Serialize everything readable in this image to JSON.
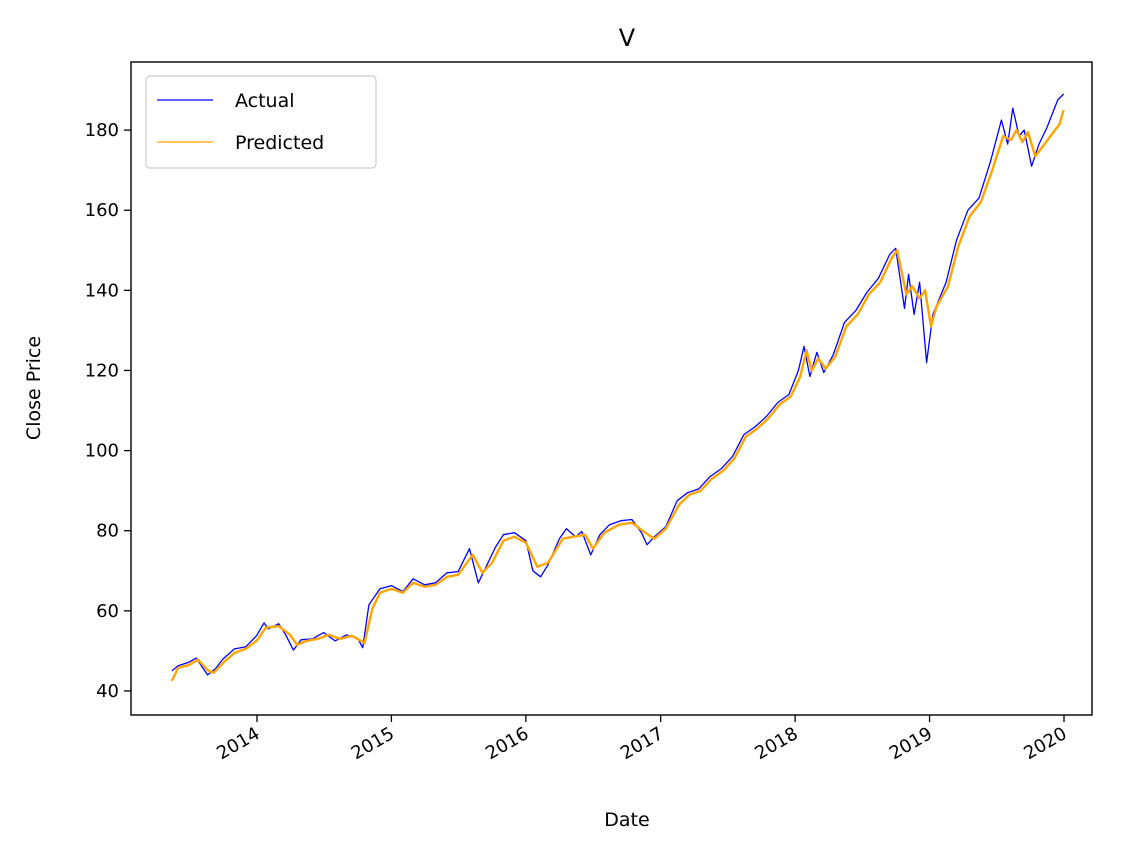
{
  "chart_data": {
    "type": "line",
    "title": "V",
    "xlabel": "Date",
    "ylabel": "Close Price",
    "x_ticks": [
      "2014",
      "2015",
      "2016",
      "2017",
      "2018",
      "2019",
      "2020"
    ],
    "y_ticks": [
      40,
      60,
      80,
      100,
      120,
      140,
      160,
      180
    ],
    "xlim": [
      "2013-01-24",
      "2020-03-17"
    ],
    "ylim": [
      34,
      197
    ],
    "grid": false,
    "legend": "top-left",
    "series": [
      {
        "name": "Actual",
        "color": "#0000ff",
        "points": [
          [
            "2013-05-15",
            45.0
          ],
          [
            "2013-06-01",
            46.3
          ],
          [
            "2013-07-01",
            47.2
          ],
          [
            "2013-07-20",
            48.2
          ],
          [
            "2013-08-20",
            44.0
          ],
          [
            "2013-09-10",
            45.5
          ],
          [
            "2013-10-01",
            48.0
          ],
          [
            "2013-11-01",
            50.5
          ],
          [
            "2013-12-01",
            51.0
          ],
          [
            "2013-12-31",
            53.8
          ],
          [
            "2014-01-20",
            57.0
          ],
          [
            "2014-02-01",
            55.5
          ],
          [
            "2014-03-01",
            56.8
          ],
          [
            "2014-03-20",
            54.0
          ],
          [
            "2014-04-10",
            50.2
          ],
          [
            "2014-05-01",
            52.8
          ],
          [
            "2014-06-01",
            53.0
          ],
          [
            "2014-07-01",
            54.6
          ],
          [
            "2014-08-01",
            52.5
          ],
          [
            "2014-09-01",
            54.0
          ],
          [
            "2014-10-01",
            53.2
          ],
          [
            "2014-10-15",
            50.8
          ],
          [
            "2014-11-01",
            61.5
          ],
          [
            "2014-12-01",
            65.5
          ],
          [
            "2015-01-01",
            66.3
          ],
          [
            "2015-02-01",
            64.8
          ],
          [
            "2015-03-01",
            68.0
          ],
          [
            "2015-04-01",
            66.5
          ],
          [
            "2015-05-01",
            67.0
          ],
          [
            "2015-06-01",
            69.5
          ],
          [
            "2015-07-01",
            69.8
          ],
          [
            "2015-08-01",
            75.5
          ],
          [
            "2015-08-25",
            67.0
          ],
          [
            "2015-09-15",
            71.0
          ],
          [
            "2015-10-10",
            75.8
          ],
          [
            "2015-11-01",
            79.0
          ],
          [
            "2015-12-01",
            79.5
          ],
          [
            "2016-01-01",
            77.5
          ],
          [
            "2016-01-20",
            70.0
          ],
          [
            "2016-02-10",
            68.5
          ],
          [
            "2016-03-01",
            71.5
          ],
          [
            "2016-04-01",
            78.0
          ],
          [
            "2016-04-20",
            80.5
          ],
          [
            "2016-05-15",
            78.5
          ],
          [
            "2016-06-01",
            79.8
          ],
          [
            "2016-06-25",
            74.0
          ],
          [
            "2016-07-20",
            79.0
          ],
          [
            "2016-08-15",
            81.5
          ],
          [
            "2016-09-15",
            82.5
          ],
          [
            "2016-10-15",
            82.8
          ],
          [
            "2016-11-10",
            79.5
          ],
          [
            "2016-11-25",
            76.5
          ],
          [
            "2016-12-15",
            78.5
          ],
          [
            "2017-01-15",
            81.0
          ],
          [
            "2017-02-15",
            87.5
          ],
          [
            "2017-03-15",
            89.5
          ],
          [
            "2017-04-15",
            90.5
          ],
          [
            "2017-05-15",
            93.5
          ],
          [
            "2017-06-15",
            95.5
          ],
          [
            "2017-07-15",
            98.5
          ],
          [
            "2017-08-15",
            104.0
          ],
          [
            "2017-09-15",
            106.0
          ],
          [
            "2017-10-15",
            108.5
          ],
          [
            "2017-11-15",
            112.0
          ],
          [
            "2017-12-15",
            114.0
          ],
          [
            "2018-01-10",
            120.0
          ],
          [
            "2018-01-25",
            126.0
          ],
          [
            "2018-02-10",
            118.5
          ],
          [
            "2018-03-01",
            124.5
          ],
          [
            "2018-03-20",
            119.5
          ],
          [
            "2018-04-15",
            124.0
          ],
          [
            "2018-05-15",
            132.0
          ],
          [
            "2018-06-15",
            135.0
          ],
          [
            "2018-07-15",
            139.5
          ],
          [
            "2018-08-15",
            143.0
          ],
          [
            "2018-09-15",
            149.0
          ],
          [
            "2018-10-01",
            150.5
          ],
          [
            "2018-10-25",
            135.5
          ],
          [
            "2018-11-05",
            144.0
          ],
          [
            "2018-11-20",
            134.0
          ],
          [
            "2018-12-05",
            142.0
          ],
          [
            "2018-12-24",
            122.0
          ],
          [
            "2019-01-10",
            134.0
          ],
          [
            "2019-02-15",
            142.0
          ],
          [
            "2019-03-15",
            152.5
          ],
          [
            "2019-04-15",
            160.0
          ],
          [
            "2019-05-15",
            163.0
          ],
          [
            "2019-06-15",
            172.0
          ],
          [
            "2019-07-15",
            182.5
          ],
          [
            "2019-08-01",
            176.5
          ],
          [
            "2019-08-15",
            185.5
          ],
          [
            "2019-09-01",
            178.5
          ],
          [
            "2019-09-15",
            180.0
          ],
          [
            "2019-10-05",
            171.0
          ],
          [
            "2019-10-25",
            176.5
          ],
          [
            "2019-11-15",
            180.5
          ],
          [
            "2019-12-15",
            187.5
          ],
          [
            "2019-12-31",
            189.0
          ]
        ]
      },
      {
        "name": "Predicted",
        "color": "#ffa500",
        "points": [
          [
            "2013-05-15",
            42.5
          ],
          [
            "2013-06-01",
            45.8
          ],
          [
            "2013-07-01",
            46.5
          ],
          [
            "2013-07-25",
            47.8
          ],
          [
            "2013-08-20",
            45.2
          ],
          [
            "2013-09-05",
            44.5
          ],
          [
            "2013-10-01",
            47.0
          ],
          [
            "2013-11-01",
            49.5
          ],
          [
            "2013-12-01",
            50.5
          ],
          [
            "2013-12-31",
            52.5
          ],
          [
            "2014-01-25",
            55.8
          ],
          [
            "2014-03-01",
            56.2
          ],
          [
            "2014-04-01",
            54.0
          ],
          [
            "2014-04-20",
            51.5
          ],
          [
            "2014-05-15",
            52.5
          ],
          [
            "2014-06-15",
            53.0
          ],
          [
            "2014-07-15",
            54.0
          ],
          [
            "2014-08-15",
            53.0
          ],
          [
            "2014-09-15",
            53.8
          ],
          [
            "2014-10-20",
            52.0
          ],
          [
            "2014-11-10",
            60.5
          ],
          [
            "2014-12-01",
            64.5
          ],
          [
            "2015-01-01",
            65.5
          ],
          [
            "2015-02-01",
            64.5
          ],
          [
            "2015-03-01",
            67.0
          ],
          [
            "2015-04-01",
            66.0
          ],
          [
            "2015-05-01",
            66.5
          ],
          [
            "2015-06-01",
            68.5
          ],
          [
            "2015-07-01",
            69.0
          ],
          [
            "2015-08-10",
            74.0
          ],
          [
            "2015-09-05",
            69.5
          ],
          [
            "2015-10-01",
            72.0
          ],
          [
            "2015-11-01",
            77.5
          ],
          [
            "2015-12-01",
            78.5
          ],
          [
            "2016-01-01",
            77.0
          ],
          [
            "2016-02-01",
            71.0
          ],
          [
            "2016-03-01",
            72.0
          ],
          [
            "2016-04-10",
            78.0
          ],
          [
            "2016-05-10",
            78.5
          ],
          [
            "2016-06-10",
            79.0
          ],
          [
            "2016-07-01",
            75.5
          ],
          [
            "2016-08-01",
            79.5
          ],
          [
            "2016-09-10",
            81.5
          ],
          [
            "2016-10-15",
            82.0
          ],
          [
            "2016-11-20",
            79.5
          ],
          [
            "2016-12-15",
            78.0
          ],
          [
            "2017-01-15",
            80.5
          ],
          [
            "2017-02-20",
            86.5
          ],
          [
            "2017-03-20",
            89.0
          ],
          [
            "2017-04-20",
            90.0
          ],
          [
            "2017-05-20",
            93.0
          ],
          [
            "2017-06-20",
            95.0
          ],
          [
            "2017-07-20",
            98.0
          ],
          [
            "2017-08-20",
            103.5
          ],
          [
            "2017-09-20",
            105.5
          ],
          [
            "2017-10-20",
            108.0
          ],
          [
            "2017-11-20",
            111.5
          ],
          [
            "2017-12-20",
            113.5
          ],
          [
            "2018-01-15",
            118.5
          ],
          [
            "2018-02-01",
            125.0
          ],
          [
            "2018-02-15",
            120.0
          ],
          [
            "2018-03-05",
            123.0
          ],
          [
            "2018-03-25",
            120.5
          ],
          [
            "2018-04-20",
            123.5
          ],
          [
            "2018-05-20",
            131.0
          ],
          [
            "2018-06-20",
            134.0
          ],
          [
            "2018-07-20",
            139.0
          ],
          [
            "2018-08-20",
            142.0
          ],
          [
            "2018-09-20",
            148.0
          ],
          [
            "2018-10-05",
            150.0
          ],
          [
            "2018-10-30",
            139.0
          ],
          [
            "2018-11-15",
            141.0
          ],
          [
            "2018-12-05",
            138.0
          ],
          [
            "2018-12-20",
            140.0
          ],
          [
            "2019-01-05",
            131.0
          ],
          [
            "2019-01-20",
            136.0
          ],
          [
            "2019-02-20",
            141.0
          ],
          [
            "2019-03-20",
            151.0
          ],
          [
            "2019-04-20",
            158.5
          ],
          [
            "2019-05-20",
            162.0
          ],
          [
            "2019-06-20",
            170.0
          ],
          [
            "2019-07-20",
            178.5
          ],
          [
            "2019-08-10",
            177.5
          ],
          [
            "2019-08-25",
            180.0
          ],
          [
            "2019-09-10",
            177.0
          ],
          [
            "2019-09-25",
            179.5
          ],
          [
            "2019-10-15",
            173.5
          ],
          [
            "2019-11-01",
            175.5
          ],
          [
            "2019-11-25",
            178.5
          ],
          [
            "2019-12-20",
            181.5
          ],
          [
            "2019-12-31",
            185.0
          ]
        ]
      }
    ]
  }
}
